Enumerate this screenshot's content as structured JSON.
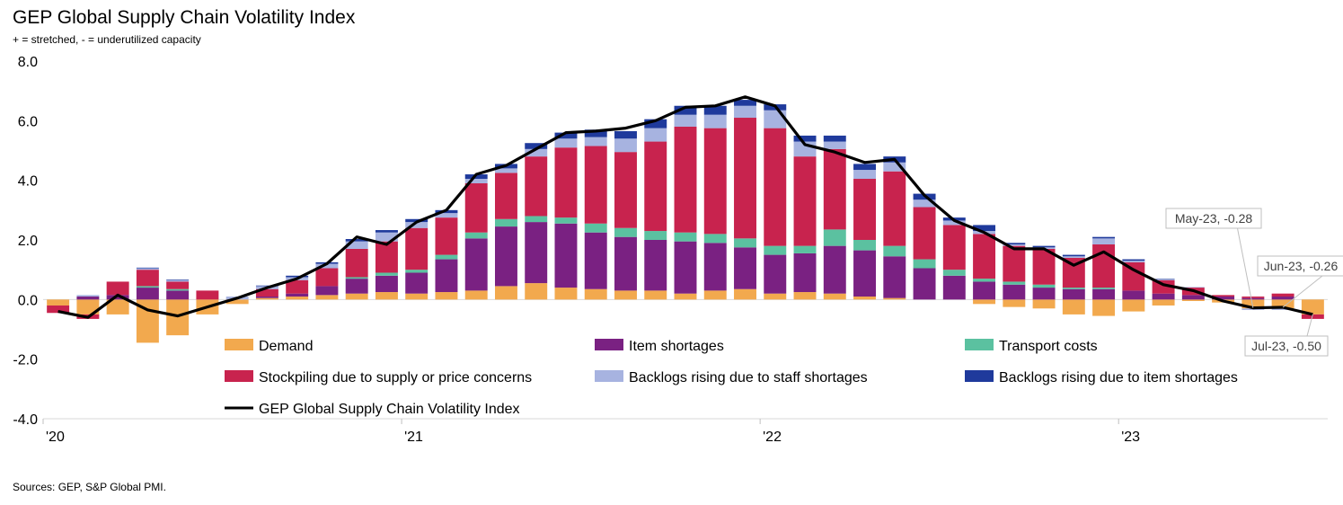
{
  "chart_data": {
    "type": "bar",
    "stacked": true,
    "title": "GEP Global Supply Chain Volatility Index",
    "subtitle": "+ = stretched, - = underutilized capacity",
    "source": "Sources: GEP, S&P Global PMI.",
    "ylim": [
      -4,
      8
    ],
    "yticks": [
      "8.0",
      "6.0",
      "4.0",
      "2.0",
      "0.0",
      "-2.0",
      "-4.0"
    ],
    "ytick_values": [
      8,
      6,
      4,
      2,
      0,
      -2,
      -4
    ],
    "year_labels": [
      "'20",
      "'21",
      "'22",
      "'23"
    ],
    "year_start_index": [
      0,
      12,
      24,
      36
    ],
    "categories": [
      "Jan-20",
      "Feb-20",
      "Mar-20",
      "Apr-20",
      "May-20",
      "Jun-20",
      "Jul-20",
      "Aug-20",
      "Sep-20",
      "Oct-20",
      "Nov-20",
      "Dec-20",
      "Jan-21",
      "Feb-21",
      "Mar-21",
      "Apr-21",
      "May-21",
      "Jun-21",
      "Jul-21",
      "Aug-21",
      "Sep-21",
      "Oct-21",
      "Nov-21",
      "Dec-21",
      "Jan-22",
      "Feb-22",
      "Mar-22",
      "Apr-22",
      "May-22",
      "Jun-22",
      "Jul-22",
      "Aug-22",
      "Sep-22",
      "Oct-22",
      "Nov-22",
      "Dec-22",
      "Jan-23",
      "Feb-23",
      "Mar-23",
      "Apr-23",
      "May-23",
      "Jun-23",
      "Jul-23"
    ],
    "series": [
      {
        "name": "Demand",
        "color": "#F2A94E",
        "values": [
          -0.2,
          -0.5,
          -0.5,
          -1.45,
          -1.2,
          -0.5,
          -0.15,
          0.05,
          0.1,
          0.15,
          0.2,
          0.25,
          0.2,
          0.25,
          0.3,
          0.45,
          0.55,
          0.4,
          0.35,
          0.3,
          0.3,
          0.2,
          0.3,
          0.35,
          0.2,
          0.25,
          0.2,
          0.1,
          0.05,
          0.0,
          0.0,
          -0.15,
          -0.25,
          -0.3,
          -0.5,
          -0.55,
          -0.4,
          -0.2,
          -0.05,
          -0.1,
          -0.3,
          -0.3,
          -0.5
        ]
      },
      {
        "name": "Item shortages",
        "color": "#7A2182",
        "values": [
          0.0,
          0.1,
          0.15,
          0.4,
          0.3,
          0.0,
          0.0,
          0.05,
          0.1,
          0.3,
          0.5,
          0.55,
          0.7,
          1.1,
          1.75,
          2.0,
          2.05,
          2.15,
          1.9,
          1.8,
          1.7,
          1.75,
          1.6,
          1.4,
          1.3,
          1.3,
          1.6,
          1.55,
          1.4,
          1.05,
          0.8,
          0.6,
          0.5,
          0.4,
          0.35,
          0.35,
          0.3,
          0.2,
          0.15,
          0.1,
          0.05,
          0.1,
          0.0
        ]
      },
      {
        "name": "Transport costs",
        "color": "#5BC1A0",
        "values": [
          0.0,
          0.0,
          0.0,
          0.05,
          0.05,
          0.0,
          0.0,
          0.0,
          0.0,
          0.0,
          0.05,
          0.1,
          0.1,
          0.15,
          0.2,
          0.25,
          0.2,
          0.2,
          0.3,
          0.3,
          0.3,
          0.3,
          0.3,
          0.3,
          0.3,
          0.25,
          0.55,
          0.35,
          0.35,
          0.3,
          0.2,
          0.1,
          0.1,
          0.1,
          0.05,
          0.05,
          0.0,
          0.0,
          0.0,
          0.0,
          0.0,
          0.0,
          0.0
        ]
      },
      {
        "name": "Stockpiling due to supply or price concerns",
        "color": "#C8234E",
        "values": [
          -0.25,
          -0.15,
          0.45,
          0.55,
          0.25,
          0.3,
          0.0,
          0.25,
          0.45,
          0.6,
          0.95,
          1.05,
          1.4,
          1.25,
          1.65,
          1.55,
          2.0,
          2.35,
          2.6,
          2.55,
          3.0,
          3.55,
          3.55,
          4.05,
          3.95,
          3.0,
          2.7,
          2.05,
          2.5,
          1.75,
          1.5,
          1.5,
          1.2,
          1.2,
          1.0,
          1.45,
          0.95,
          0.45,
          0.25,
          0.05,
          0.05,
          0.1,
          -0.15
        ]
      },
      {
        "name": "Backlogs rising due to staff shortages",
        "color": "#A7B3E0",
        "values": [
          0.0,
          0.05,
          0.0,
          0.05,
          0.05,
          0.0,
          0.1,
          0.1,
          0.1,
          0.15,
          0.25,
          0.3,
          0.2,
          0.15,
          0.15,
          0.15,
          0.25,
          0.3,
          0.3,
          0.45,
          0.45,
          0.4,
          0.45,
          0.4,
          0.6,
          0.5,
          0.25,
          0.3,
          0.3,
          0.25,
          0.15,
          0.1,
          0.05,
          0.05,
          0.05,
          0.2,
          0.05,
          0.02,
          0.02,
          0.0,
          -0.05,
          -0.05,
          0.0
        ]
      },
      {
        "name": "Backlogs rising due to item shortages",
        "color": "#1F3A9C",
        "values": [
          0.0,
          0.0,
          0.0,
          0.02,
          0.02,
          0.0,
          0.0,
          0.02,
          0.05,
          0.05,
          0.08,
          0.08,
          0.1,
          0.1,
          0.15,
          0.15,
          0.2,
          0.2,
          0.25,
          0.25,
          0.3,
          0.3,
          0.3,
          0.2,
          0.2,
          0.2,
          0.2,
          0.2,
          0.2,
          0.2,
          0.1,
          0.2,
          0.05,
          0.05,
          0.05,
          0.05,
          0.05,
          0.02,
          0.0,
          0.0,
          0.0,
          0.0,
          0.0
        ]
      }
    ],
    "line": {
      "name": "GEP Global Supply Chain Volatility Index",
      "color": "#000000",
      "values": [
        -0.4,
        -0.6,
        0.15,
        -0.35,
        -0.55,
        -0.25,
        0.05,
        0.4,
        0.7,
        1.2,
        2.1,
        1.85,
        2.6,
        3.0,
        4.2,
        4.5,
        5.05,
        5.6,
        5.65,
        5.75,
        6.0,
        6.45,
        6.5,
        6.8,
        6.5,
        5.2,
        4.95,
        4.6,
        4.7,
        3.5,
        2.65,
        2.25,
        1.7,
        1.7,
        1.15,
        1.6,
        1.0,
        0.5,
        0.3,
        -0.05,
        -0.28,
        -0.26,
        -0.5
      ]
    },
    "annotations": [
      {
        "text": "May-23, -0.28",
        "index": 40,
        "value": -0.28
      },
      {
        "text": "Jun-23, -0.26",
        "index": 41,
        "value": -0.26
      },
      {
        "text": "Jul-23, -0.50",
        "index": 42,
        "value": -0.5
      }
    ],
    "legend_order": [
      "Demand",
      "Item shortages",
      "Transport costs",
      "Stockpiling due to supply or price concerns",
      "Backlogs rising due to staff shortages",
      "Backlogs rising due to item shortages",
      "GEP Global Supply Chain Volatility Index"
    ]
  }
}
